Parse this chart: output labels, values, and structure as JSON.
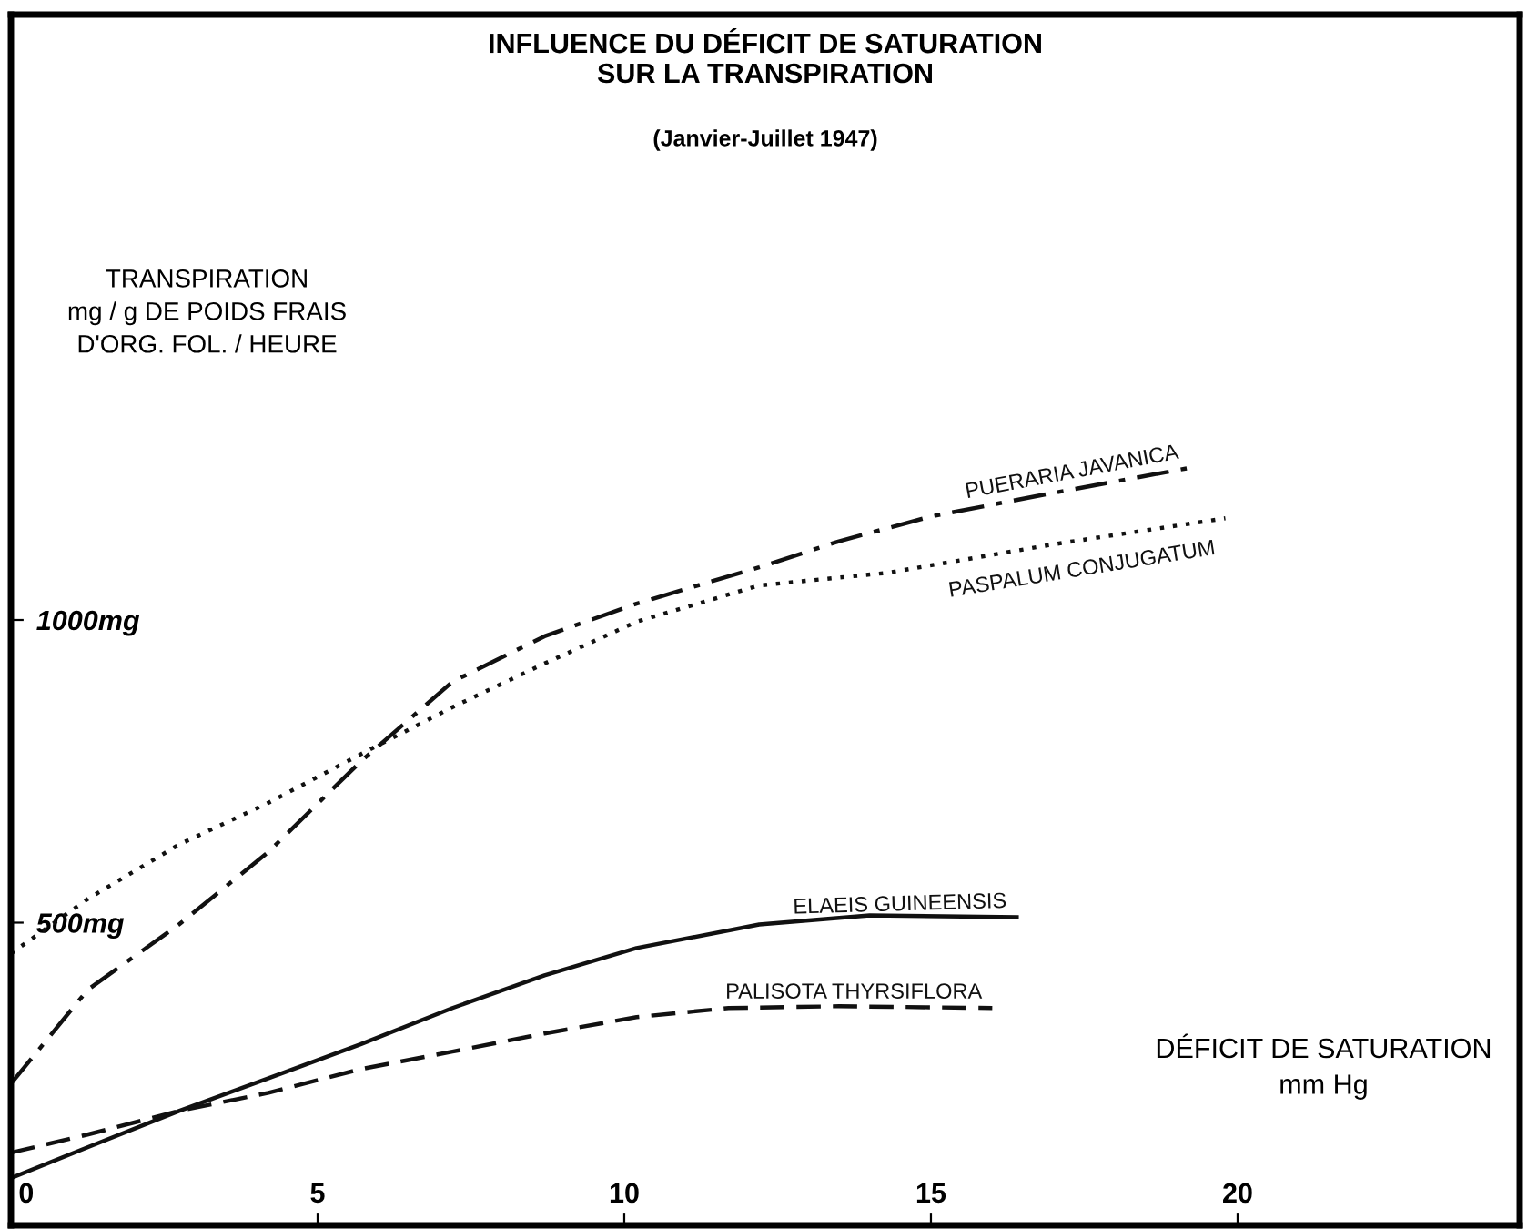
{
  "chart_data": {
    "type": "line",
    "title": "INFLUENCE DU DÉFICIT DE SATURATION\nSUR LA TRANSPIRATION",
    "subtitle": "(Janvier-Juillet 1947)",
    "ylabel": "TRANSPIRATION\nmg / g DE POIDS FRAIS\nD'ORG. FOL. / HEURE",
    "xlabel": "DÉFICIT DE SATURATION\nmm Hg",
    "xlim": [
      0,
      24.6
    ],
    "xticks": [
      0,
      5,
      10,
      15,
      20
    ],
    "ylim": [
      0,
      2000
    ],
    "yticks": [
      {
        "value": 500,
        "label": "500mg"
      },
      {
        "value": 1000,
        "label": "1000mg"
      }
    ],
    "grid": false,
    "legend": false,
    "marker": "none",
    "series": [
      {
        "name": "PUERARIA JAVANICA",
        "color": "#111111",
        "line_style": "dashdot",
        "x": [
          0,
          1.25,
          2.74,
          4.2,
          5.7,
          7.2,
          8.7,
          10.2,
          12.2,
          13.5,
          15.0,
          17,
          19.2
        ],
        "values": [
          234,
          389,
          497,
          617,
          766,
          898,
          973,
          1027,
          1087,
          1130,
          1171,
          1210,
          1251
        ]
      },
      {
        "name": "PASPALUM CONJUGATUM",
        "color": "#111111",
        "line_style": "dotted",
        "x": [
          0,
          1.25,
          2.74,
          4.2,
          5.7,
          7.2,
          8.7,
          10.2,
          12.2,
          14.3,
          17,
          19.8
        ],
        "values": [
          449,
          539,
          629,
          698,
          778,
          856,
          928,
          997,
          1057,
          1078,
          1125,
          1168
        ]
      },
      {
        "name": "ELAEIS GUINEENSIS",
        "color": "#111111",
        "line_style": "solid",
        "x": [
          0,
          1.25,
          2.74,
          4.2,
          5.7,
          7.2,
          8.7,
          10.2,
          12.2,
          14,
          16.4
        ],
        "values": [
          78,
          129,
          189,
          243,
          299,
          359,
          413,
          458,
          497,
          512,
          509
        ]
      },
      {
        "name": "PALISOTA THYRSIFLORA",
        "color": "#111111",
        "line_style": "dashed",
        "x": [
          0,
          1.25,
          2.74,
          4.2,
          5.7,
          7.2,
          8.7,
          10.2,
          11.7,
          13.5,
          16.0
        ],
        "values": [
          120,
          150,
          189,
          219,
          258,
          287,
          317,
          344,
          359,
          362,
          359
        ]
      }
    ]
  }
}
